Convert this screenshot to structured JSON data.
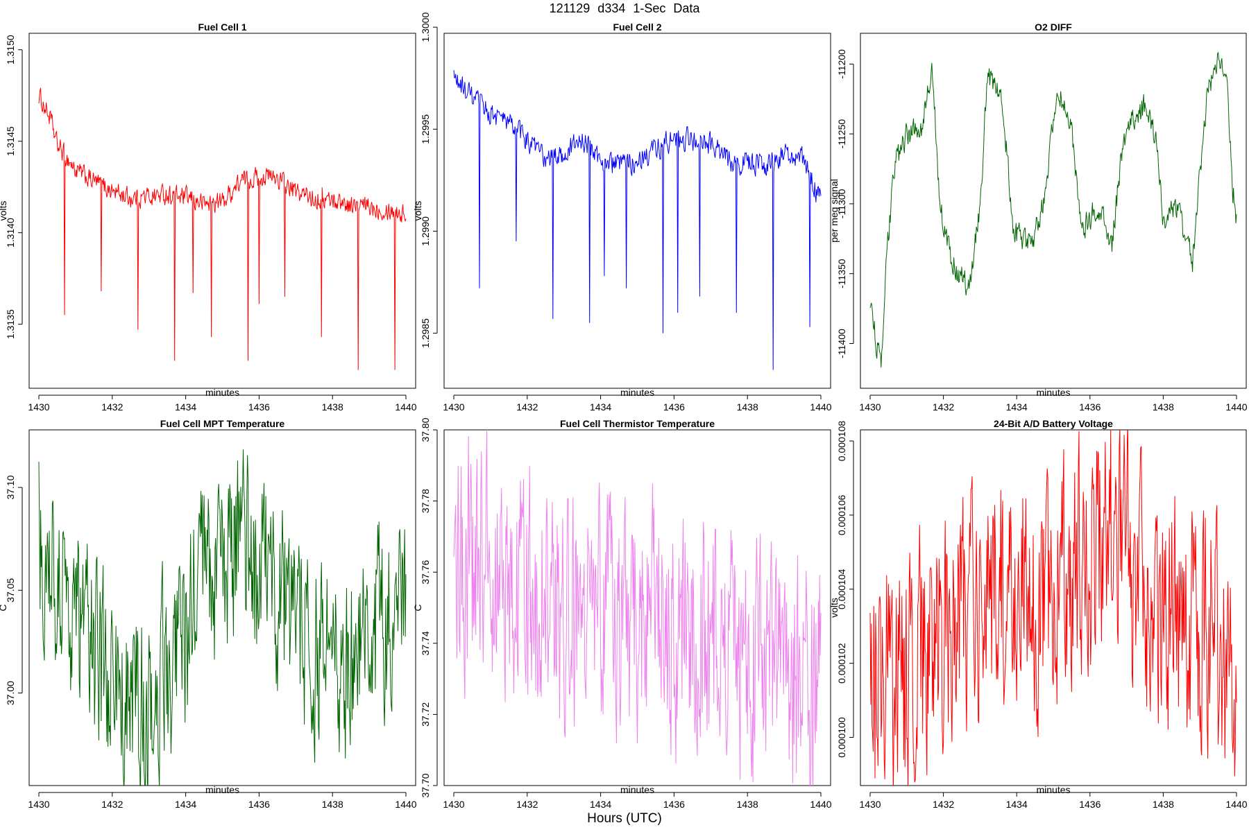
{
  "figure": {
    "title": "121129   d334   1-Sec Data",
    "xlabel_outer": "Hours (UTC)"
  },
  "chart_data": [
    {
      "type": "line",
      "title": "Fuel Cell 1",
      "xlabel": "minutes",
      "ylabel": "volts",
      "color": "#ff0000",
      "xlim": [
        1430,
        1440
      ],
      "ylim": [
        1.31315,
        1.31509
      ],
      "xticks": [
        1430,
        1432,
        1434,
        1436,
        1438,
        1440
      ],
      "yticks": [
        1.3135,
        1.314,
        1.3145,
        1.315
      ],
      "ytick_labels": [
        "1.3135",
        "1.3140",
        "1.3145",
        "1.3150"
      ],
      "grid": false,
      "legend": "none",
      "samples": 600,
      "series": [
        {
          "segments": [
            [
              1430.0,
              1.31475
            ],
            [
              1430.3,
              1.31463
            ],
            [
              1430.5,
              1.31448
            ],
            [
              1430.8,
              1.3144
            ],
            [
              1431.0,
              1.31434
            ],
            [
              1431.5,
              1.31428
            ],
            [
              1432.0,
              1.31423
            ],
            [
              1432.5,
              1.31419
            ],
            [
              1433.0,
              1.3142
            ],
            [
              1433.5,
              1.31421
            ],
            [
              1434.0,
              1.31419
            ],
            [
              1434.5,
              1.31416
            ],
            [
              1435.0,
              1.31417
            ],
            [
              1435.5,
              1.31428
            ],
            [
              1436.0,
              1.31431
            ],
            [
              1436.5,
              1.3143
            ],
            [
              1437.0,
              1.31422
            ],
            [
              1437.5,
              1.31419
            ],
            [
              1438.0,
              1.31418
            ],
            [
              1438.5,
              1.31415
            ],
            [
              1439.0,
              1.31414
            ],
            [
              1439.5,
              1.31413
            ],
            [
              1440.0,
              1.3141
            ]
          ],
          "noise": 5e-05,
          "spikes": [
            [
              1430.7,
              1.31355
            ],
            [
              1431.7,
              1.31368
            ],
            [
              1432.7,
              1.31347
            ],
            [
              1433.7,
              1.3133
            ],
            [
              1434.2,
              1.31367
            ],
            [
              1434.7,
              1.31343
            ],
            [
              1435.7,
              1.3133
            ],
            [
              1436.0,
              1.31361
            ],
            [
              1436.7,
              1.31365
            ],
            [
              1437.7,
              1.31343
            ],
            [
              1438.7,
              1.31325
            ],
            [
              1439.7,
              1.31325
            ]
          ]
        }
      ]
    },
    {
      "type": "line",
      "title": "Fuel Cell 2",
      "xlabel": "minutes",
      "ylabel": "volts",
      "color": "#0000ff",
      "xlim": [
        1430,
        1440
      ],
      "ylim": [
        1.29823,
        1.29997
      ],
      "xticks": [
        1430,
        1432,
        1434,
        1436,
        1438,
        1440
      ],
      "yticks": [
        1.2985,
        1.299,
        1.2995,
        1.3
      ],
      "ytick_labels": [
        "1.2985",
        "1.2990",
        "1.2995",
        "1.3000"
      ],
      "grid": false,
      "legend": "none",
      "samples": 600,
      "series": [
        {
          "segments": [
            [
              1430.0,
              1.29975
            ],
            [
              1430.5,
              1.29965
            ],
            [
              1431.0,
              1.29958
            ],
            [
              1431.5,
              1.29953
            ],
            [
              1432.0,
              1.29945
            ],
            [
              1432.5,
              1.29935
            ],
            [
              1433.0,
              1.29938
            ],
            [
              1433.5,
              1.29945
            ],
            [
              1434.0,
              1.29935
            ],
            [
              1434.5,
              1.29932
            ],
            [
              1435.0,
              1.29935
            ],
            [
              1435.5,
              1.2994
            ],
            [
              1436.0,
              1.29945
            ],
            [
              1436.5,
              1.29945
            ],
            [
              1437.0,
              1.29942
            ],
            [
              1437.5,
              1.29935
            ],
            [
              1438.0,
              1.29933
            ],
            [
              1438.5,
              1.29932
            ],
            [
              1439.0,
              1.29938
            ],
            [
              1439.5,
              1.29935
            ],
            [
              1440.0,
              1.29915
            ]
          ],
          "noise": 5e-05,
          "spikes": [
            [
              1430.7,
              1.29872
            ],
            [
              1431.7,
              1.29895
            ],
            [
              1432.7,
              1.29857
            ],
            [
              1433.7,
              1.29855
            ],
            [
              1434.1,
              1.29878
            ],
            [
              1434.7,
              1.29872
            ],
            [
              1435.7,
              1.2985
            ],
            [
              1436.1,
              1.2986
            ],
            [
              1436.7,
              1.29868
            ],
            [
              1437.7,
              1.2986
            ],
            [
              1438.7,
              1.29832
            ],
            [
              1439.7,
              1.29853
            ]
          ]
        }
      ]
    },
    {
      "type": "line",
      "title": "O2 DIFF",
      "xlabel": "minutes",
      "ylabel": "per meg signal",
      "color": "#006400",
      "xlim": [
        1430,
        1440
      ],
      "ylim": [
        -11432,
        -11178
      ],
      "xticks": [
        1430,
        1432,
        1434,
        1436,
        1438,
        1440
      ],
      "yticks": [
        -11400,
        -11350,
        -11300,
        -11250,
        -11200
      ],
      "ytick_labels": [
        "-11400",
        "-11350",
        "-11300",
        "-11250",
        "-11200"
      ],
      "grid": false,
      "legend": "none",
      "samples": 600,
      "series": [
        {
          "segments": [
            [
              1430.0,
              -11370
            ],
            [
              1430.15,
              -11395
            ],
            [
              1430.3,
              -11420
            ],
            [
              1430.45,
              -11340
            ],
            [
              1430.65,
              -11275
            ],
            [
              1431.0,
              -11250
            ],
            [
              1431.4,
              -11245
            ],
            [
              1431.7,
              -11205
            ],
            [
              1431.9,
              -11300
            ],
            [
              1432.2,
              -11340
            ],
            [
              1432.7,
              -11360
            ],
            [
              1433.0,
              -11300
            ],
            [
              1433.2,
              -11210
            ],
            [
              1433.6,
              -11220
            ],
            [
              1433.9,
              -11320
            ],
            [
              1434.4,
              -11330
            ],
            [
              1434.8,
              -11290
            ],
            [
              1435.1,
              -11215
            ],
            [
              1435.5,
              -11250
            ],
            [
              1435.8,
              -11320
            ],
            [
              1436.2,
              -11300
            ],
            [
              1436.6,
              -11330
            ],
            [
              1436.8,
              -11280
            ],
            [
              1437.0,
              -11245
            ],
            [
              1437.5,
              -11230
            ],
            [
              1437.8,
              -11255
            ],
            [
              1438.0,
              -11310
            ],
            [
              1438.4,
              -11305
            ],
            [
              1438.8,
              -11340
            ],
            [
              1439.2,
              -11220
            ],
            [
              1439.5,
              -11200
            ],
            [
              1439.75,
              -11215
            ],
            [
              1439.9,
              -11290
            ],
            [
              1440.0,
              -11310
            ]
          ],
          "noise": 8,
          "spikes": []
        }
      ]
    },
    {
      "type": "line",
      "title": "Fuel Cell MPT Temperature",
      "xlabel": "minutes",
      "ylabel": "C",
      "color": "#006400",
      "xlim": [
        1430,
        1440
      ],
      "ylim": [
        36.955,
        37.128
      ],
      "xticks": [
        1430,
        1432,
        1434,
        1436,
        1438,
        1440
      ],
      "yticks": [
        37.0,
        37.05,
        37.1
      ],
      "ytick_labels": [
        "37.00",
        "37.05",
        "37.10"
      ],
      "grid": false,
      "legend": "none",
      "samples": 600,
      "series": [
        {
          "segments": [
            [
              1430.0,
              37.075
            ],
            [
              1430.5,
              37.06
            ],
            [
              1431.0,
              37.035
            ],
            [
              1431.5,
              37.02
            ],
            [
              1432.0,
              37.005
            ],
            [
              1432.5,
              36.995
            ],
            [
              1433.0,
              36.995
            ],
            [
              1433.5,
              37.015
            ],
            [
              1434.0,
              37.03
            ],
            [
              1434.5,
              37.055
            ],
            [
              1435.0,
              37.06
            ],
            [
              1435.5,
              37.07
            ],
            [
              1436.0,
              37.06
            ],
            [
              1436.5,
              37.05
            ],
            [
              1437.0,
              37.035
            ],
            [
              1437.5,
              37.02
            ],
            [
              1438.0,
              37.01
            ],
            [
              1438.5,
              37.01
            ],
            [
              1439.0,
              37.025
            ],
            [
              1439.5,
              37.04
            ],
            [
              1440.0,
              37.05
            ]
          ],
          "noise": 0.04,
          "spikes": []
        }
      ]
    },
    {
      "type": "line",
      "title": "Fuel Cell Thermistor Temperature",
      "xlabel": "minutes",
      "ylabel": "C",
      "color": "#ee82ee",
      "xlim": [
        1430,
        1440
      ],
      "ylim": [
        37.7,
        37.8
      ],
      "xticks": [
        1430,
        1432,
        1434,
        1436,
        1438,
        1440
      ],
      "yticks": [
        37.7,
        37.72,
        37.74,
        37.76,
        37.78,
        37.8
      ],
      "ytick_labels": [
        "37.70",
        "37.72",
        "37.74",
        "37.76",
        "37.78",
        "37.80"
      ],
      "grid": false,
      "legend": "none",
      "samples": 600,
      "series": [
        {
          "segments": [
            [
              1430.0,
              37.765
            ],
            [
              1431.0,
              37.762
            ],
            [
              1432.0,
              37.752
            ],
            [
              1433.0,
              37.75
            ],
            [
              1434.0,
              37.75
            ],
            [
              1435.0,
              37.748
            ],
            [
              1436.0,
              37.742
            ],
            [
              1437.0,
              37.738
            ],
            [
              1438.0,
              37.735
            ],
            [
              1439.0,
              37.733
            ],
            [
              1440.0,
              37.73
            ]
          ],
          "noise": 0.03,
          "spikes": []
        }
      ]
    },
    {
      "type": "line",
      "title": "24-Bit A/D Battery Voltage",
      "xlabel": "minutes",
      "ylabel": "volts",
      "color": "#ff0000",
      "xlim": [
        1430,
        1440
      ],
      "ylim": [
        9.87e-05,
        0.0001083
      ],
      "xticks": [
        1430,
        1432,
        1434,
        1436,
        1438,
        1440
      ],
      "yticks": [
        0.0001,
        0.000102,
        0.000104,
        0.000106,
        0.000108
      ],
      "ytick_labels": [
        "0.000100",
        "0.000102",
        "0.000104",
        "0.000106",
        "0.000108"
      ],
      "grid": false,
      "legend": "none",
      "samples": 600,
      "series": [
        {
          "segments": [
            [
              1430.0,
              0.0001018
            ],
            [
              1430.7,
              0.0001012
            ],
            [
              1431.5,
              0.0001025
            ],
            [
              1432.5,
              0.0001032
            ],
            [
              1433.5,
              0.0001042
            ],
            [
              1434.5,
              0.0001035
            ],
            [
              1435.5,
              0.0001042
            ],
            [
              1436.5,
              0.0001058
            ],
            [
              1437.5,
              0.0001038
            ],
            [
              1438.5,
              0.000103
            ],
            [
              1439.5,
              0.0001028
            ],
            [
              1440.0,
              0.0001018
            ]
          ],
          "noise": 2.8e-06,
          "spikes": []
        }
      ]
    }
  ]
}
